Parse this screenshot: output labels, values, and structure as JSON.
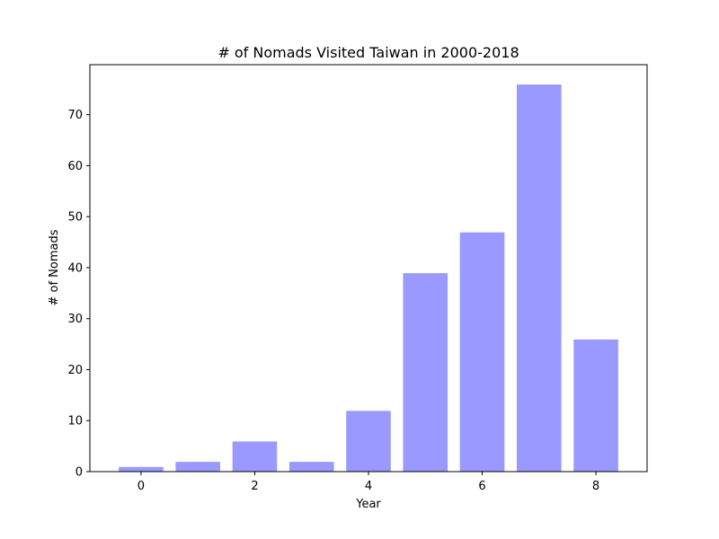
{
  "chart_data": {
    "type": "bar",
    "title": "# of Nomads Visited Taiwan in 2000-2018",
    "xlabel": "Year",
    "ylabel": "# of Nomads",
    "x": [
      0,
      1,
      2,
      3,
      4,
      5,
      6,
      7,
      8
    ],
    "values": [
      1,
      2,
      6,
      2,
      12,
      39,
      47,
      76,
      26
    ],
    "xlim": [
      -0.9,
      8.9
    ],
    "ylim": [
      0,
      79.8
    ],
    "xticks": [
      0,
      2,
      4,
      6,
      8
    ],
    "yticks": [
      0,
      10,
      20,
      30,
      40,
      50,
      60,
      70
    ],
    "grid": false,
    "bar_color": "#9999ff",
    "edge_color": "#ffffff"
  }
}
